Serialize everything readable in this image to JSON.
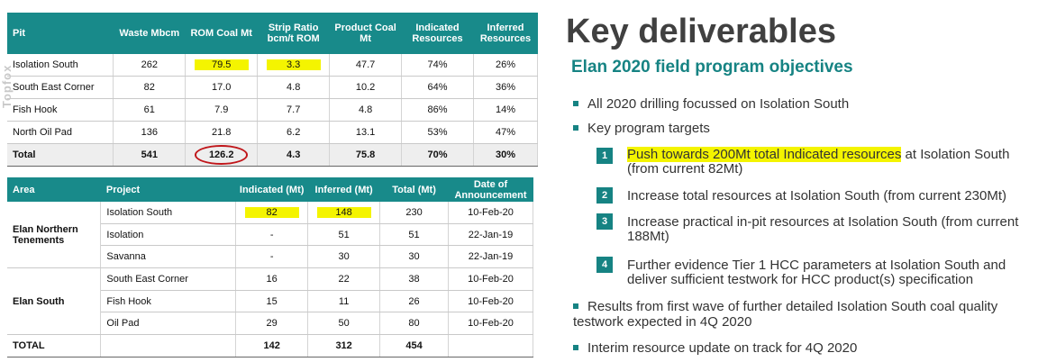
{
  "watermark": "Topfox",
  "table1": {
    "headers": [
      "Pit",
      "Waste Mbcm",
      "ROM Coal Mt",
      "Strip Ratio bcm/t ROM",
      "Product Coal Mt",
      "Indicated Resources",
      "Inferred Resources"
    ],
    "rows": [
      [
        "Isolation South",
        "262",
        "79.5",
        "3.3",
        "47.7",
        "74%",
        "26%"
      ],
      [
        "South East Corner",
        "82",
        "17.0",
        "4.8",
        "10.2",
        "64%",
        "36%"
      ],
      [
        "Fish Hook",
        "61",
        "7.9",
        "7.7",
        "4.8",
        "86%",
        "14%"
      ],
      [
        "North Oil Pad",
        "136",
        "21.8",
        "6.2",
        "13.1",
        "53%",
        "47%"
      ]
    ],
    "total": [
      "Total",
      "541",
      "126.2",
      "4.3",
      "75.8",
      "70%",
      "30%"
    ]
  },
  "table2": {
    "headers": [
      "Area",
      "Project",
      "Indicated (Mt)",
      "Inferred (Mt)",
      "Total (Mt)",
      "Date of Announcement"
    ],
    "areas": [
      "Elan Northern Tenements",
      "Elan South"
    ],
    "rows": [
      [
        "Isolation South",
        "82",
        "148",
        "230",
        "10-Feb-20"
      ],
      [
        "Isolation",
        "-",
        "51",
        "51",
        "22-Jan-19"
      ],
      [
        "Savanna",
        "-",
        "30",
        "30",
        "22-Jan-19"
      ],
      [
        "South East Corner",
        "16",
        "22",
        "38",
        "10-Feb-20"
      ],
      [
        "Fish Hook",
        "15",
        "11",
        "26",
        "10-Feb-20"
      ],
      [
        "Oil Pad",
        "29",
        "50",
        "80",
        "10-Feb-20"
      ]
    ],
    "total": [
      "TOTAL",
      "",
      "142",
      "312",
      "454",
      ""
    ]
  },
  "slide": {
    "title": "Key deliverables",
    "subtitle": "Elan 2020 field program objectives",
    "bullet1": "All 2020 drilling focussed on Isolation South",
    "bullet2": "Key program targets",
    "targets": [
      {
        "num": "1",
        "highlight": "Push towards 200Mt total Indicated resources",
        "text": " at Isolation South (from current 82Mt)"
      },
      {
        "num": "2",
        "text": "Increase total resources at Isolation South (from current 230Mt)"
      },
      {
        "num": "3",
        "text": "Increase practical in-pit resources at Isolation South (from current 188Mt)"
      },
      {
        "num": "4",
        "text": "Further evidence Tier 1 HCC parameters at Isolation South and deliver sufficient testwork for HCC product(s) specification"
      }
    ],
    "bullet3": "Results from first wave of further detailed Isolation South coal quality testwork expected in 4Q 2020",
    "bullet4": "Interim resource update on track for 4Q 2020"
  }
}
